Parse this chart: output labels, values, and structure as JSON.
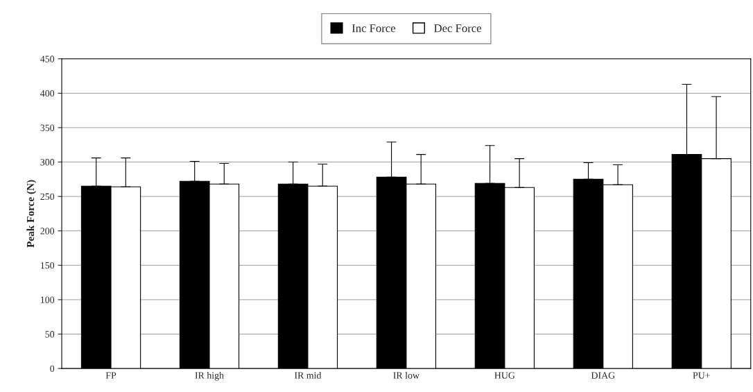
{
  "chart_data": {
    "type": "bar",
    "ylabel": "Peak Force (N)",
    "categories": [
      "FP",
      "IR high",
      "IR mid",
      "IR low",
      "HUG",
      "DIAG",
      "PU+"
    ],
    "series": [
      {
        "name": "Inc Force",
        "color": "#000000",
        "values": [
          265,
          272,
          268,
          278,
          269,
          275,
          311
        ],
        "errors": [
          [
            265,
            306
          ],
          [
            272,
            301
          ],
          [
            268,
            300
          ],
          [
            278,
            329
          ],
          [
            269,
            324
          ],
          [
            275,
            299
          ],
          [
            311,
            413
          ]
        ]
      },
      {
        "name": "Dec Force",
        "color": "#ffffff",
        "values": [
          264,
          268,
          265,
          268,
          263,
          267,
          305
        ],
        "errors": [
          [
            264,
            306
          ],
          [
            268,
            298
          ],
          [
            265,
            297
          ],
          [
            268,
            311
          ],
          [
            263,
            305
          ],
          [
            267,
            296
          ],
          [
            305,
            395
          ]
        ]
      }
    ],
    "ylim": [
      0,
      450
    ],
    "yticks": [
      0,
      50,
      100,
      150,
      200,
      250,
      300,
      350,
      400,
      450
    ],
    "grid": "y",
    "legend": "top"
  }
}
